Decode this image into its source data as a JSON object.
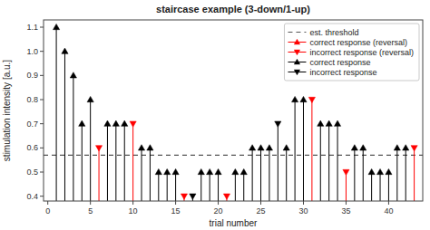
{
  "chart_data": {
    "type": "stem",
    "title": "staircase example (3-down/1-up)",
    "x_label": "trial number",
    "y_label": "stimulation intensity [a.u.]",
    "xlim": [
      -0.5,
      44
    ],
    "ylim": [
      0.38,
      1.13
    ],
    "xticks": [
      0,
      5,
      10,
      15,
      20,
      25,
      30,
      35,
      40
    ],
    "yticks": [
      0.4,
      0.5,
      0.6,
      0.7,
      0.8,
      0.9,
      {
        "value": 1.0,
        "label": "1.0"
      },
      1.1
    ],
    "baseline": 0.38,
    "grid": false,
    "legend": "upper right",
    "reference_lines": [
      {
        "name": "est. threshold",
        "value": 0.57,
        "color": "#555555",
        "line_style": "dashed"
      }
    ],
    "series": [
      {
        "name": "correct response (reversal)",
        "color": "#ff0000",
        "marker": "triangle-up",
        "x": [],
        "values": []
      },
      {
        "name": "incorrect response (reversal)",
        "color": "#ff0000",
        "marker": "triangle-down",
        "x": [
          6,
          10,
          16,
          21,
          31,
          35,
          43
        ],
        "values": [
          0.6,
          0.7,
          0.4,
          0.4,
          0.8,
          0.5,
          0.6
        ]
      },
      {
        "name": "correct response",
        "color": "#000000",
        "marker": "triangle-up",
        "x": [
          1,
          2,
          3,
          4,
          5,
          7,
          8,
          9,
          11,
          12,
          13,
          14,
          15,
          18,
          19,
          20,
          22,
          23,
          24,
          25,
          26,
          28,
          29,
          30,
          32,
          33,
          34,
          36,
          37,
          38,
          39,
          40,
          41,
          42
        ],
        "values": [
          1.1,
          1.0,
          0.9,
          0.7,
          0.8,
          0.7,
          0.7,
          0.7,
          0.6,
          0.6,
          0.5,
          0.5,
          0.5,
          0.5,
          0.5,
          0.5,
          0.5,
          0.5,
          0.6,
          0.6,
          0.6,
          0.6,
          0.8,
          0.8,
          0.7,
          0.7,
          0.7,
          0.6,
          0.6,
          0.5,
          0.5,
          0.5,
          0.6,
          0.6
        ]
      },
      {
        "name": "incorrect response",
        "color": "#000000",
        "marker": "triangle-down",
        "x": [
          17,
          27
        ],
        "values": [
          0.4,
          0.7
        ]
      }
    ]
  }
}
